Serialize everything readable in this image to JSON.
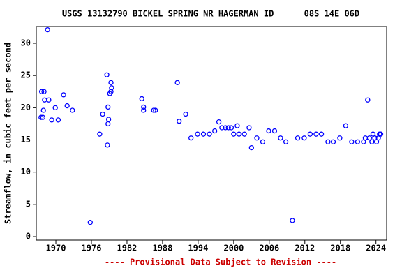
{
  "chart_data": {
    "type": "scatter",
    "title": "USGS 13132790 BICKEL SPRING NR HAGERMAN ID      08S 14E 06D",
    "y_label": "Streamflow, in cubic feet per second",
    "footer": "---- Provisional Data Subject to Revision ----",
    "color": "#0000ff",
    "xlim": [
      1966.7,
      2025.8
    ],
    "ylim": [
      -0.54,
      32.6
    ],
    "xticks": [
      1970,
      1976,
      1982,
      1988,
      1994,
      2000,
      2006,
      2012,
      2018,
      2024
    ],
    "yticks": [
      0,
      5,
      10,
      15,
      20,
      25,
      30
    ],
    "x": [
      1967.5,
      1967.8,
      1967.6,
      1968.0,
      1967.9,
      1968.1,
      1968.6,
      1968.8,
      1969.3,
      1969.9,
      1970.4,
      1971.3,
      1971.9,
      1972.8,
      1975.8,
      1977.4,
      1977.9,
      1978.6,
      1978.7,
      1978.8,
      1978.8,
      1978.9,
      1979.1,
      1979.3,
      1979.3,
      1979.4,
      1984.5,
      1984.8,
      1984.8,
      1986.5,
      1986.8,
      1990.5,
      1990.8,
      1991.9,
      1992.8,
      1993.9,
      1994.9,
      1995.9,
      1996.8,
      1997.5,
      1998.0,
      1998.6,
      1999.1,
      1999.6,
      2000.0,
      2000.6,
      2000.9,
      2001.8,
      2002.6,
      2003.0,
      2003.9,
      2004.9,
      2005.9,
      2006.9,
      2007.9,
      2008.8,
      2009.9,
      2010.8,
      2011.9,
      2012.9,
      2013.9,
      2014.8,
      2015.9,
      2016.8,
      2017.9,
      2018.9,
      2019.9,
      2020.9,
      2021.9,
      2022.2,
      2022.6,
      2022.9,
      2023.3,
      2023.5,
      2023.8,
      2024.1,
      2024.4,
      2024.6,
      2024.8
    ],
    "values": [
      18.5,
      18.5,
      22.5,
      22.5,
      19.6,
      21.2,
      32.1,
      21.2,
      18.1,
      20.0,
      18.1,
      22.0,
      20.3,
      19.6,
      2.2,
      15.9,
      19.0,
      25.1,
      14.2,
      20.1,
      17.5,
      18.2,
      22.2,
      22.5,
      23.9,
      23.1,
      21.4,
      20.1,
      19.6,
      19.6,
      19.6,
      23.9,
      17.9,
      19.0,
      15.3,
      15.9,
      15.9,
      15.9,
      16.4,
      17.8,
      16.9,
      16.9,
      16.9,
      16.9,
      15.9,
      17.2,
      15.9,
      15.9,
      16.9,
      13.8,
      15.3,
      14.7,
      16.4,
      16.4,
      15.3,
      14.7,
      2.5,
      15.3,
      15.3,
      15.9,
      15.9,
      15.9,
      14.7,
      14.7,
      15.3,
      17.2,
      14.7,
      14.7,
      14.7,
      15.3,
      21.2,
      15.3,
      14.7,
      15.9,
      15.3,
      14.7,
      15.3,
      15.9,
      15.9
    ]
  }
}
